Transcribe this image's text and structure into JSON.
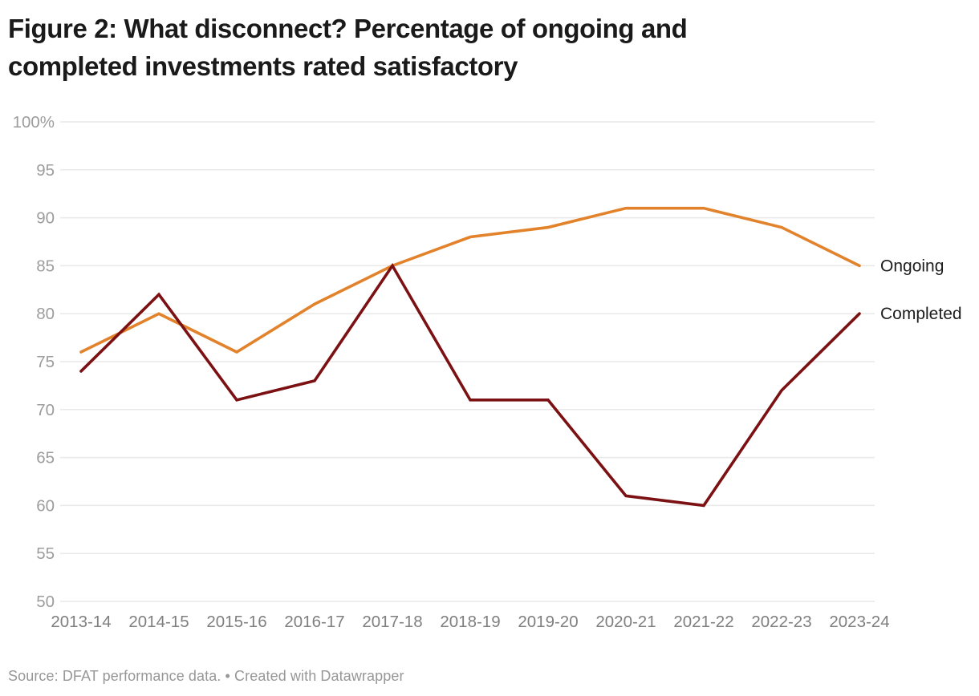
{
  "header": {
    "title_line1": "Figure 2: What disconnect? Percentage of ongoing and",
    "title_line2": "completed investments rated satisfactory"
  },
  "footer": {
    "text": "Source: DFAT performance data. • Created with Datawrapper"
  },
  "colors": {
    "ongoing_line": "#E2832C",
    "completed_line": "#7B1113",
    "gridline": "#E9E9E9",
    "y_tick_text": "#9D9D9D",
    "x_tick_text": "#7F7F7F",
    "series_label_text": "#1D1D1D",
    "title_text": "#1A1A1A",
    "footer_text": "#979797"
  },
  "chart_data": {
    "type": "line",
    "title": "Figure 2: What disconnect? Percentage of ongoing and completed investments rated satisfactory",
    "source": "Source: DFAT performance data.",
    "credit": "Created with Datawrapper",
    "categories": [
      "2013-14",
      "2014-15",
      "2015-16",
      "2016-17",
      "2017-18",
      "2018-19",
      "2019-20",
      "2020-21",
      "2021-22",
      "2022-23",
      "2023-24"
    ],
    "series": [
      {
        "name": "Ongoing",
        "color": "#E2832C",
        "values": [
          76,
          80,
          76,
          81,
          85,
          88,
          89,
          91,
          91,
          89,
          85
        ]
      },
      {
        "name": "Completed",
        "color": "#7B1113",
        "values": [
          74,
          82,
          71,
          73,
          85,
          71,
          71,
          61,
          60,
          72,
          80
        ]
      }
    ],
    "xlabel": "",
    "ylabel": "",
    "ylim": [
      50,
      100
    ],
    "y_ticks": [
      {
        "value": 100,
        "label": "100%"
      },
      {
        "value": 95,
        "label": "95"
      },
      {
        "value": 90,
        "label": "90"
      },
      {
        "value": 85,
        "label": "85"
      },
      {
        "value": 80,
        "label": "80"
      },
      {
        "value": 75,
        "label": "75"
      },
      {
        "value": 70,
        "label": "70"
      },
      {
        "value": 65,
        "label": "65"
      },
      {
        "value": 60,
        "label": "60"
      },
      {
        "value": 55,
        "label": "55"
      },
      {
        "value": 50,
        "label": "50"
      }
    ],
    "grid": "horizontal",
    "legend_position": "line-end-labels"
  }
}
